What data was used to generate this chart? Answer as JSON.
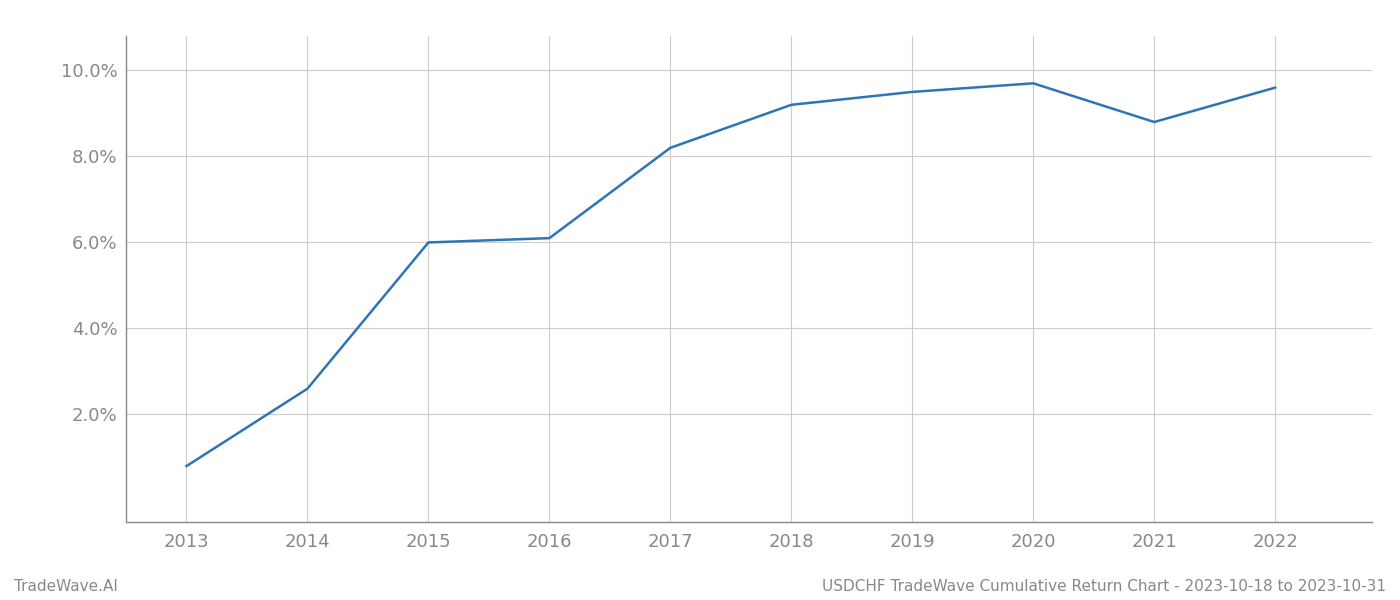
{
  "x": [
    2013,
    2014,
    2015,
    2016,
    2017,
    2018,
    2019,
    2020,
    2021,
    2022
  ],
  "y": [
    0.008,
    0.026,
    0.06,
    0.061,
    0.082,
    0.092,
    0.095,
    0.097,
    0.088,
    0.096
  ],
  "line_color": "#2e75b6",
  "line_width": 1.8,
  "background_color": "#ffffff",
  "grid_color": "#cccccc",
  "tick_color": "#888888",
  "spine_color": "#888888",
  "xlim": [
    2012.5,
    2022.8
  ],
  "ylim": [
    -0.005,
    0.108
  ],
  "yticks": [
    0.02,
    0.04,
    0.06,
    0.08,
    0.1
  ],
  "xticks": [
    2013,
    2014,
    2015,
    2016,
    2017,
    2018,
    2019,
    2020,
    2021,
    2022
  ],
  "footer_left": "TradeWave.AI",
  "footer_right": "USDCHF TradeWave Cumulative Return Chart - 2023-10-18 to 2023-10-31",
  "footer_color": "#888888",
  "footer_fontsize": 11,
  "tick_fontsize": 13
}
